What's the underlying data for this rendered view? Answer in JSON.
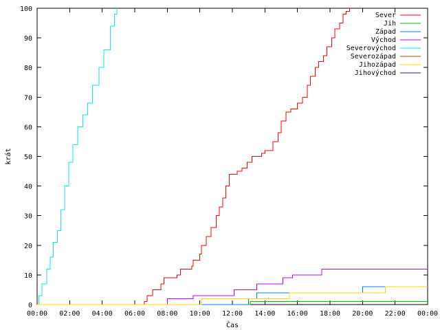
{
  "chart_data": {
    "type": "line",
    "title": "",
    "xlabel": "Čas",
    "ylabel": "krát",
    "xlim": [
      0,
      24
    ],
    "ylim": [
      0,
      100
    ],
    "x_ticks": [
      {
        "value": 0,
        "label": "00:00"
      },
      {
        "value": 2,
        "label": "02:00"
      },
      {
        "value": 4,
        "label": "04:00"
      },
      {
        "value": 6,
        "label": "06:00"
      },
      {
        "value": 8,
        "label": "08:00"
      },
      {
        "value": 10,
        "label": "10:00"
      },
      {
        "value": 12,
        "label": "12:00"
      },
      {
        "value": 14,
        "label": "14:00"
      },
      {
        "value": 16,
        "label": "16:00"
      },
      {
        "value": 18,
        "label": "18:00"
      },
      {
        "value": 20,
        "label": "20:00"
      },
      {
        "value": 22,
        "label": "22:00"
      },
      {
        "value": 24,
        "label": "00:00"
      }
    ],
    "y_ticks": [
      0,
      10,
      20,
      30,
      40,
      50,
      60,
      70,
      80,
      90,
      100
    ],
    "grid": false,
    "legend_position": "top-right",
    "series": [
      {
        "name": "Sever",
        "color": "#ff0000",
        "shape": "steps",
        "points": [
          [
            0,
            0
          ],
          [
            6.5,
            0
          ],
          [
            6.6,
            1
          ],
          [
            6.75,
            3
          ],
          [
            7.1,
            5
          ],
          [
            7.6,
            7
          ],
          [
            7.8,
            9
          ],
          [
            8.6,
            10
          ],
          [
            8.8,
            12
          ],
          [
            9.5,
            13
          ],
          [
            9.6,
            15
          ],
          [
            10,
            17
          ],
          [
            10.1,
            20
          ],
          [
            10.4,
            23
          ],
          [
            10.7,
            26
          ],
          [
            11.0,
            30
          ],
          [
            11.2,
            33
          ],
          [
            11.4,
            36
          ],
          [
            11.6,
            40
          ],
          [
            11.8,
            44
          ],
          [
            12.3,
            45
          ],
          [
            12.6,
            46
          ],
          [
            12.9,
            48
          ],
          [
            13.2,
            50
          ],
          [
            13.8,
            51
          ],
          [
            14.0,
            52
          ],
          [
            14.5,
            55
          ],
          [
            14.8,
            58
          ],
          [
            15.0,
            62
          ],
          [
            15.3,
            65
          ],
          [
            15.6,
            66
          ],
          [
            16.0,
            68
          ],
          [
            16.3,
            70
          ],
          [
            16.6,
            74
          ],
          [
            16.8,
            77
          ],
          [
            17.1,
            80
          ],
          [
            17.3,
            82
          ],
          [
            17.6,
            84
          ],
          [
            17.8,
            87
          ],
          [
            18.1,
            90
          ],
          [
            18.3,
            93
          ],
          [
            18.6,
            95
          ],
          [
            18.8,
            98
          ],
          [
            19.0,
            99
          ],
          [
            19.2,
            100
          ]
        ]
      },
      {
        "name": "Jih",
        "color": "#00c000",
        "shape": "steps",
        "points": [
          [
            0,
            0
          ],
          [
            13.0,
            0
          ],
          [
            13.1,
            1
          ],
          [
            24,
            1
          ]
        ]
      },
      {
        "name": "Západ",
        "color": "#0080ff",
        "shape": "steps",
        "points": [
          [
            0,
            0
          ],
          [
            12.9,
            0
          ],
          [
            13.0,
            2
          ],
          [
            13.5,
            4
          ],
          [
            19.9,
            4
          ],
          [
            20.0,
            6
          ],
          [
            24,
            6
          ]
        ]
      },
      {
        "name": "Východ",
        "color": "#c000ff",
        "shape": "steps",
        "points": [
          [
            0,
            0
          ],
          [
            7.9,
            0
          ],
          [
            8.0,
            2
          ],
          [
            9.5,
            2
          ],
          [
            9.6,
            3
          ],
          [
            12.0,
            3
          ],
          [
            12.1,
            5
          ],
          [
            13.4,
            5
          ],
          [
            13.5,
            7
          ],
          [
            14.8,
            7
          ],
          [
            15.1,
            9
          ],
          [
            15.7,
            10
          ],
          [
            17.4,
            10
          ],
          [
            17.5,
            12
          ],
          [
            24,
            12
          ]
        ]
      },
      {
        "name": "Severovýchod",
        "color": "#00eeee",
        "shape": "steps",
        "points": [
          [
            0,
            0
          ],
          [
            0.1,
            3
          ],
          [
            0.3,
            7
          ],
          [
            0.6,
            12
          ],
          [
            0.8,
            16
          ],
          [
            1.0,
            21
          ],
          [
            1.25,
            25
          ],
          [
            1.45,
            32
          ],
          [
            1.7,
            40
          ],
          [
            1.95,
            48
          ],
          [
            2.2,
            54
          ],
          [
            2.5,
            60
          ],
          [
            2.8,
            64
          ],
          [
            3.1,
            68
          ],
          [
            3.4,
            74
          ],
          [
            3.8,
            80
          ],
          [
            4.1,
            86
          ],
          [
            4.5,
            94
          ],
          [
            4.75,
            98
          ],
          [
            4.9,
            100
          ]
        ]
      },
      {
        "name": "Severozápad",
        "color": "#c04000",
        "shape": "steps",
        "points": []
      },
      {
        "name": "Jihozápad",
        "color": "#ffd700",
        "shape": "steps",
        "points": [
          [
            0,
            0
          ],
          [
            10.0,
            0
          ],
          [
            10.1,
            2
          ],
          [
            15.4,
            2
          ],
          [
            15.5,
            4
          ],
          [
            21.3,
            4
          ],
          [
            21.4,
            6
          ],
          [
            24,
            6
          ]
        ]
      },
      {
        "name": "Jihovýchod",
        "color": "#2020a0",
        "shape": "steps",
        "points": []
      }
    ]
  }
}
